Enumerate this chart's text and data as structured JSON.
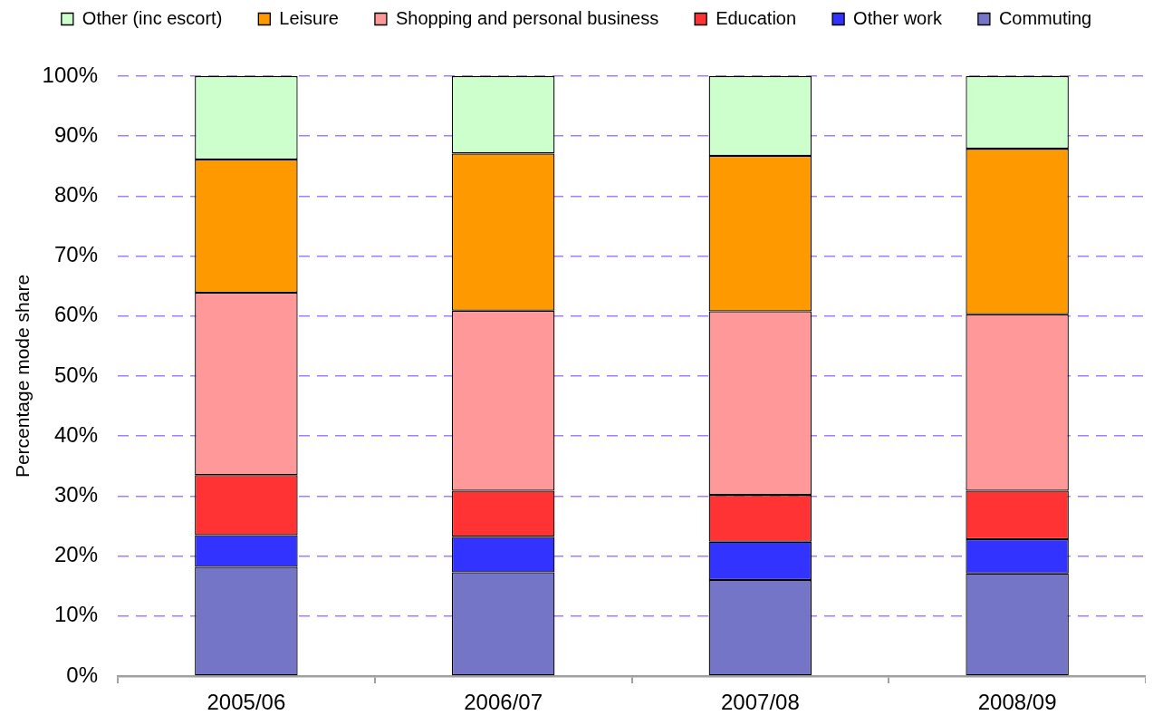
{
  "chart_data": {
    "type": "bar",
    "stacked": true,
    "ylabel": "Percentage mode share",
    "categories": [
      "2005/06",
      "2006/07",
      "2007/08",
      "2008/09"
    ],
    "series": [
      {
        "name": "Commuting",
        "color": "#7575c8",
        "values": [
          18.2,
          17.3,
          16.0,
          17.1
        ]
      },
      {
        "name": "Other work",
        "color": "#3333ff",
        "values": [
          5.3,
          5.9,
          6.4,
          5.7
        ]
      },
      {
        "name": "Education",
        "color": "#ff3333",
        "values": [
          10.0,
          7.7,
          7.8,
          8.1
        ]
      },
      {
        "name": "Shopping and personal business",
        "color": "#ff9999",
        "values": [
          30.4,
          30.0,
          30.6,
          29.4
        ]
      },
      {
        "name": "Leisure",
        "color": "#ff9900",
        "values": [
          22.2,
          26.2,
          25.9,
          27.6
        ]
      },
      {
        "name": "Other (inc escort)",
        "color": "#ccffcc",
        "values": [
          13.9,
          12.9,
          13.3,
          12.1
        ]
      }
    ],
    "ylim": [
      0,
      100
    ],
    "yticks": [
      {
        "value": 0,
        "label": "0%"
      },
      {
        "value": 10,
        "label": "10%"
      },
      {
        "value": 20,
        "label": "20%"
      },
      {
        "value": 30,
        "label": "30%"
      },
      {
        "value": 40,
        "label": "40%"
      },
      {
        "value": 50,
        "label": "50%"
      },
      {
        "value": 60,
        "label": "60%"
      },
      {
        "value": 70,
        "label": "70%"
      },
      {
        "value": 80,
        "label": "80%"
      },
      {
        "value": 90,
        "label": "90%"
      },
      {
        "value": 100,
        "label": "100%"
      }
    ],
    "grid": "y",
    "legend": "top"
  }
}
